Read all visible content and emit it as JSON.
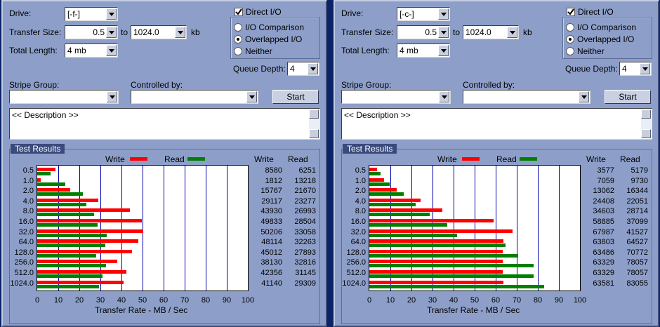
{
  "labels": {
    "drive": "Drive:",
    "transfer_size": "Transfer Size:",
    "to": "to",
    "kb": "kb",
    "total_length": "Total Length:",
    "direct_io": "Direct I/O",
    "io_comparison": "I/O Comparison",
    "overlapped_io": "Overlapped I/O",
    "neither": "Neither",
    "queue_depth": "Queue Depth:",
    "stripe_group": "Stripe Group:",
    "controlled_by": "Controlled by:",
    "start": "Start",
    "description": "<< Description >>",
    "test_results": "Test Results",
    "write": "Write",
    "read": "Read",
    "x_axis": "Transfer Rate - MB / Sec"
  },
  "x_ticks": [
    "0",
    "10",
    "20",
    "30",
    "40",
    "50",
    "60",
    "70",
    "80",
    "90",
    "100"
  ],
  "colors": {
    "write": "#ff0000",
    "read": "#008000",
    "grid": "#0000aa"
  },
  "panels": [
    {
      "drive": "[-f-]",
      "transfer_from": "0.5",
      "transfer_to": "1024.0",
      "total_length": "4 mb",
      "direct_io_checked": true,
      "mode": "overlapped",
      "queue_depth": "4",
      "stripe_group": "",
      "controlled_by": "",
      "chart_data": {
        "type": "bar",
        "orientation": "horizontal",
        "categories": [
          "0.5",
          "1.0",
          "2.0",
          "4.0",
          "8.0",
          "16.0",
          "32.0",
          "64.0",
          "128.0",
          "256.0",
          "512.0",
          "1024.0"
        ],
        "series": [
          {
            "name": "Write",
            "values": [
              8580,
              1812,
              15767,
              29117,
              43930,
              49833,
              50206,
              48114,
              45012,
              38130,
              42356,
              41140
            ]
          },
          {
            "name": "Read",
            "values": [
              6251,
              13218,
              21670,
              23277,
              26993,
              28504,
              33058,
              32263,
              27893,
              32816,
              31145,
              29309
            ]
          }
        ],
        "xlabel": "Transfer Rate - MB / Sec",
        "xlim": [
          0,
          100
        ]
      }
    },
    {
      "drive": "[-c-]",
      "transfer_from": "0.5",
      "transfer_to": "1024.0",
      "total_length": "4 mb",
      "direct_io_checked": true,
      "mode": "overlapped",
      "queue_depth": "4",
      "stripe_group": "",
      "controlled_by": "",
      "chart_data": {
        "type": "bar",
        "orientation": "horizontal",
        "categories": [
          "0.5",
          "1.0",
          "2.0",
          "4.0",
          "8.0",
          "16.0",
          "32.0",
          "64.0",
          "128.0",
          "256.0",
          "512.0",
          "1024.0"
        ],
        "series": [
          {
            "name": "Write",
            "values": [
              3577,
              7059,
              13062,
              24408,
              34603,
              58885,
              67987,
              63803,
              63486,
              63329,
              63329,
              63581
            ]
          },
          {
            "name": "Read",
            "values": [
              5179,
              9730,
              16344,
              22051,
              28714,
              37099,
              41527,
              64527,
              70772,
              78057,
              78057,
              83055
            ]
          }
        ],
        "xlabel": "Transfer Rate - MB / Sec",
        "xlim": [
          0,
          100
        ]
      }
    }
  ]
}
